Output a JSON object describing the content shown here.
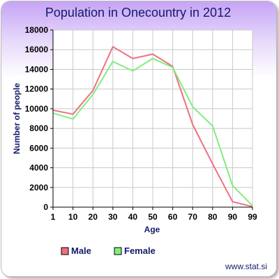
{
  "chart_data": {
    "type": "line",
    "title": "Population in Onecountry in 2012",
    "xlabel": "Age",
    "ylabel": "Number of people",
    "categories": [
      "1",
      "10",
      "20",
      "30",
      "40",
      "50",
      "60",
      "70",
      "80",
      "90",
      "99"
    ],
    "ylim": [
      0,
      18000
    ],
    "yticks": [
      0,
      2000,
      4000,
      6000,
      8000,
      10000,
      12000,
      14000,
      16000,
      18000
    ],
    "grid": true,
    "legend_position": "bottom",
    "series": [
      {
        "name": "Male",
        "color": "#f07080",
        "values": [
          9850,
          9450,
          11850,
          16300,
          15100,
          15550,
          14300,
          8400,
          4400,
          550,
          50
        ]
      },
      {
        "name": "Female",
        "color": "#80ee80",
        "values": [
          9550,
          8950,
          11450,
          14800,
          13850,
          15100,
          14200,
          10200,
          8250,
          2200,
          150
        ]
      }
    ]
  },
  "footer": {
    "credit": "www.stat.si"
  },
  "colors": {
    "header_gradient_top": "#c6a4f6",
    "header_gradient_bottom": "#ffffff",
    "title_text": "#141a6b",
    "gridline": "#c8c8c8",
    "axis": "#000000"
  }
}
